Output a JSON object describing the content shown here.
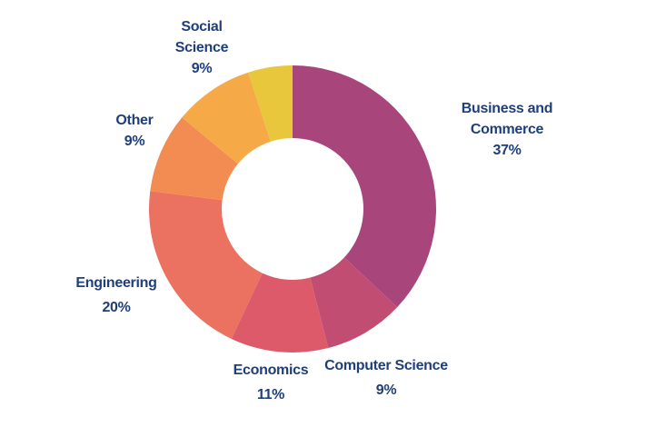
{
  "chart_data": {
    "type": "donut",
    "categories": [
      "Business and Commerce",
      "Computer Science",
      "Economics",
      "Engineering",
      "Other",
      "Social Science",
      null
    ],
    "values": [
      37,
      9,
      11,
      20,
      9,
      9,
      5
    ],
    "value_labels": [
      "37%",
      "9%",
      "11%",
      "20%",
      "9%",
      "9%",
      null
    ],
    "colors": [
      "#a8457a",
      "#c24d73",
      "#dc5a6a",
      "#eb7160",
      "#f28c52",
      "#f5aa47",
      "#e9c73d"
    ]
  }
}
